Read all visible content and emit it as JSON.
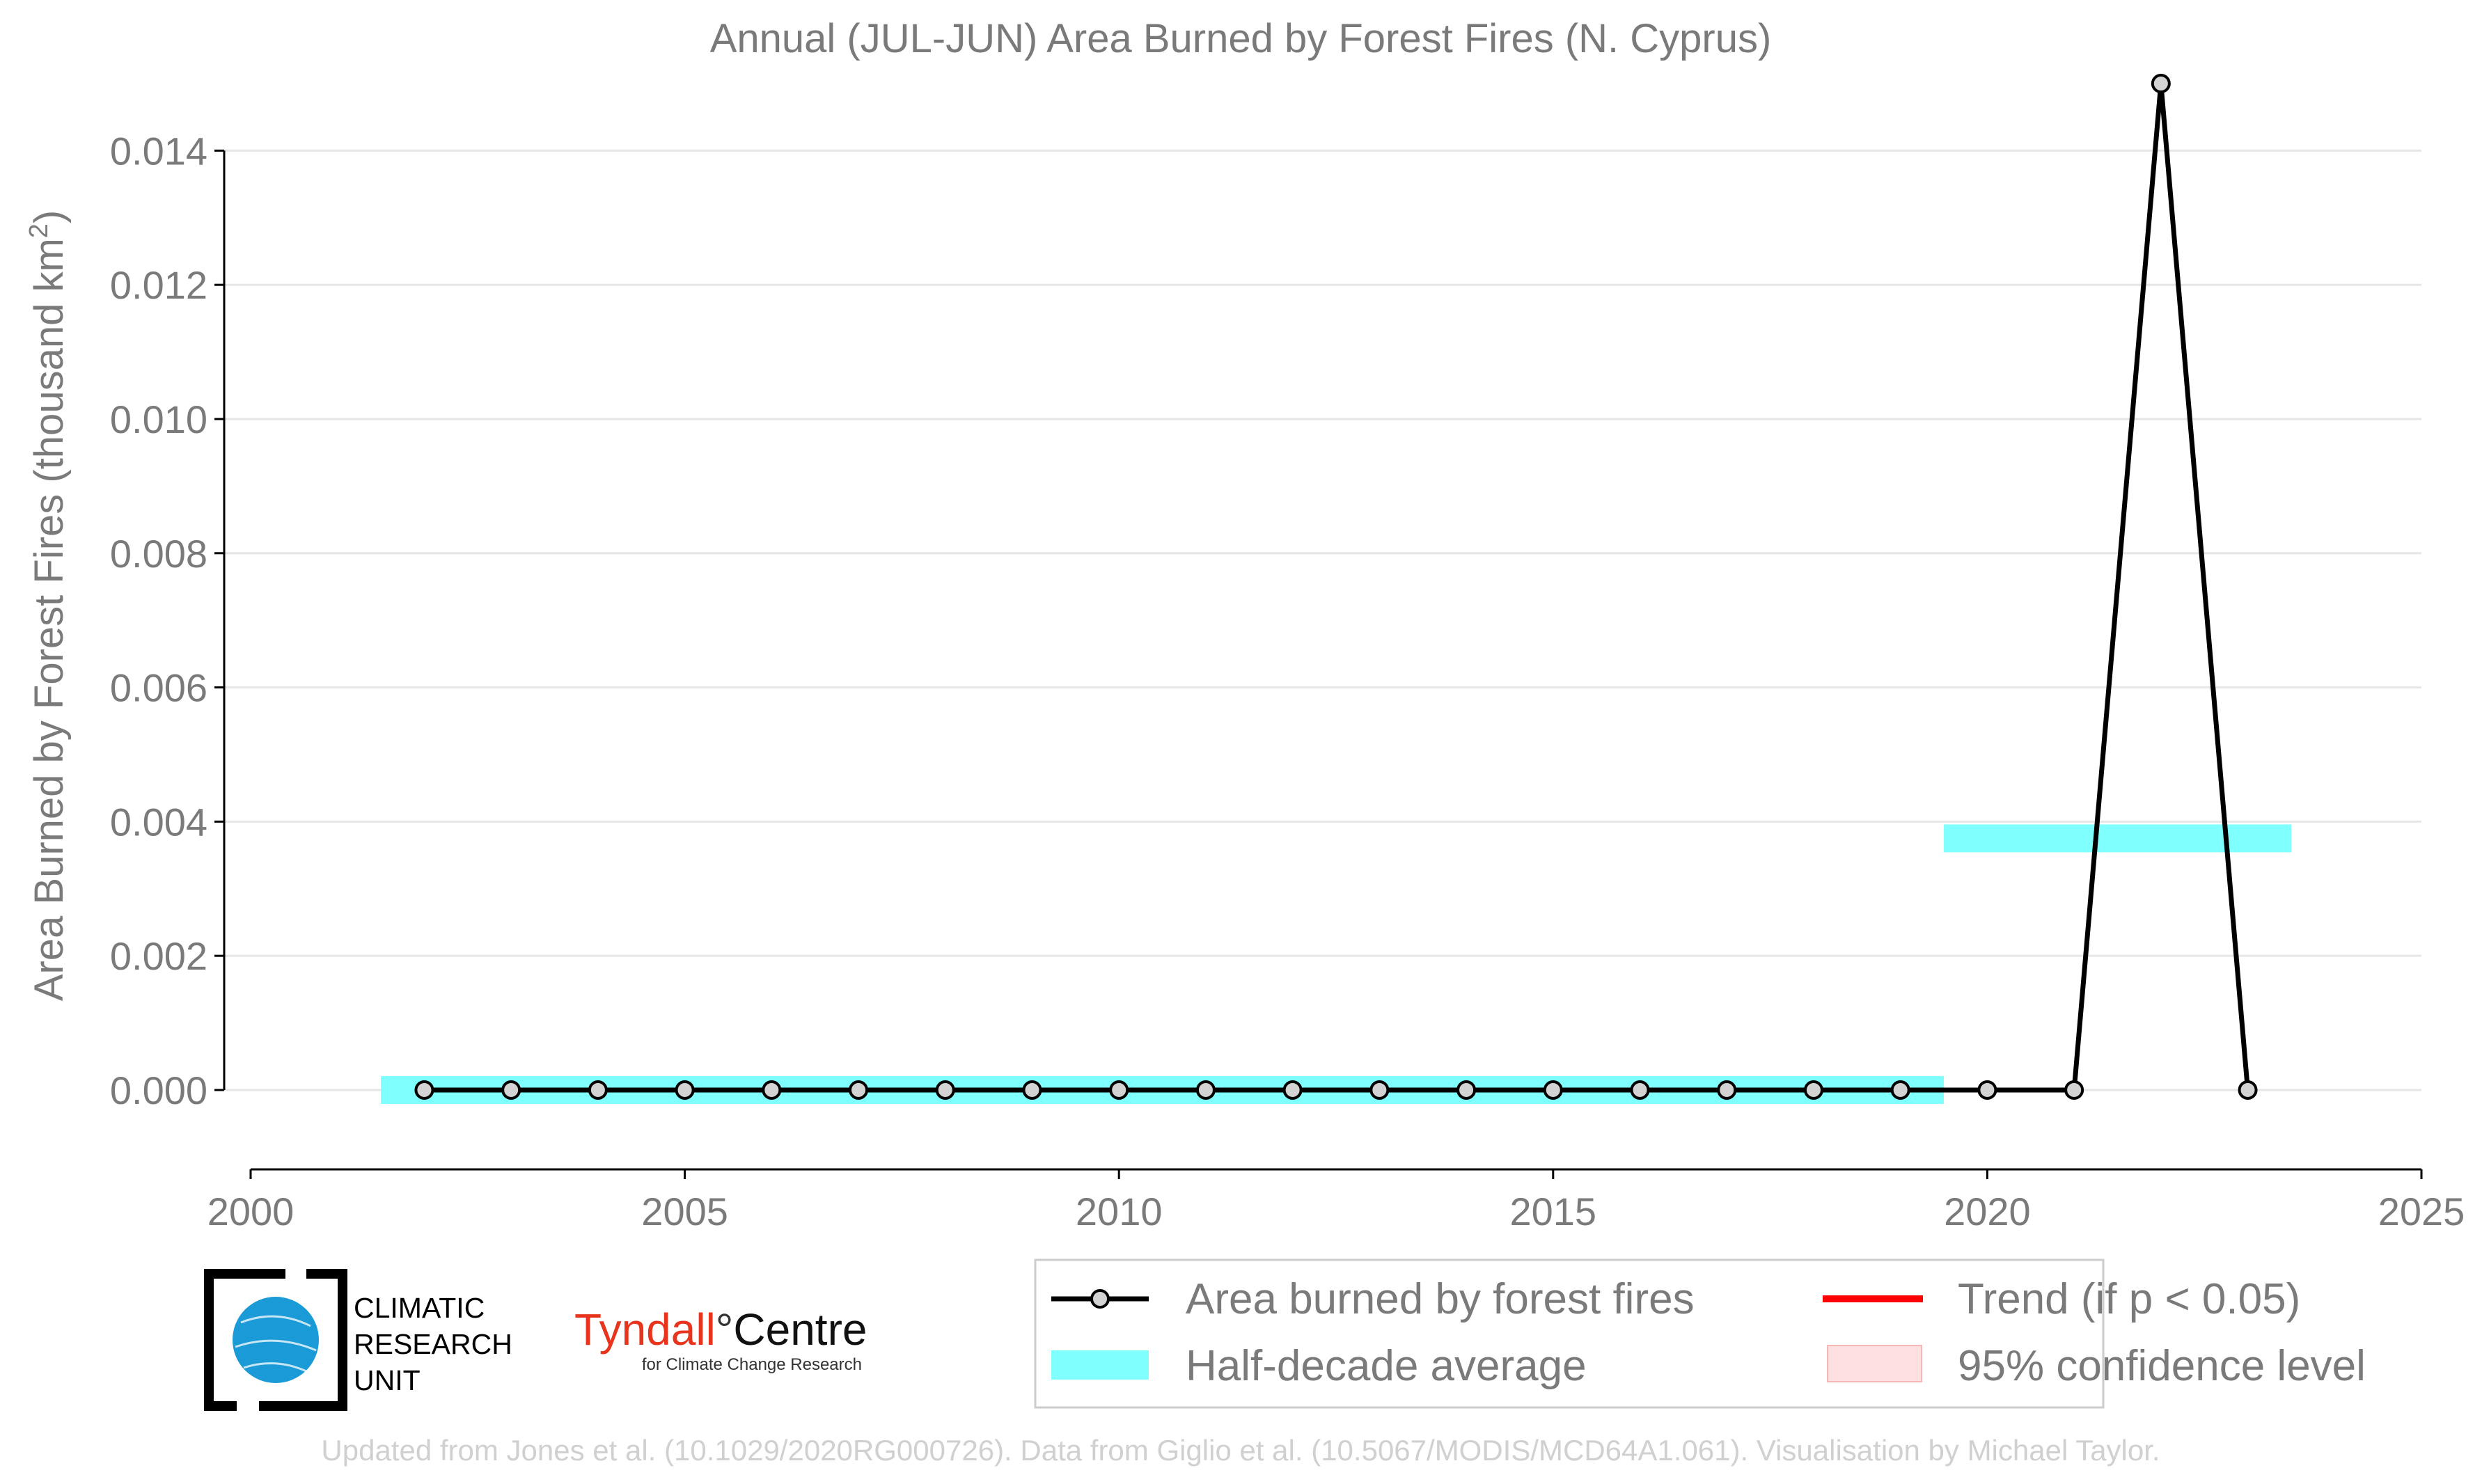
{
  "chart_data": {
    "type": "line",
    "title": "Annual (JUL-JUN) Area Burned by Forest Fires (N. Cyprus)",
    "ylabel": "Area Burned by Forest Fires (thousand km",
    "ylabel_sup": "2",
    "ylabel_close": ")",
    "xlabel": "",
    "xlim": [
      2000,
      2025
    ],
    "ylim": [
      -0.0011,
      0.015
    ],
    "grid": true,
    "x_ticks": [
      "2000",
      "2005",
      "2010",
      "2015",
      "2020",
      "2025"
    ],
    "y_ticks": [
      "0.000",
      "0.002",
      "0.004",
      "0.006",
      "0.008",
      "0.010",
      "0.012",
      "0.014"
    ],
    "series": [
      {
        "name": "Area burned by forest fires",
        "color": "#000000",
        "x": [
          2002,
          2003,
          2004,
          2005,
          2006,
          2007,
          2008,
          2009,
          2010,
          2011,
          2012,
          2013,
          2014,
          2015,
          2016,
          2017,
          2018,
          2019,
          2020,
          2021,
          2022,
          2023
        ],
        "y": [
          0,
          0,
          0,
          0,
          0,
          0,
          0,
          0,
          0,
          0,
          0,
          0,
          0,
          0,
          0,
          0,
          0,
          0,
          0,
          0,
          0.015,
          0
        ]
      }
    ],
    "half_decade_average": {
      "name": "Half-decade average",
      "color": "#80ffff",
      "segments": [
        {
          "x_start": 2001.5,
          "x_end": 2019.5,
          "y": 0.0
        },
        {
          "x_start": 2019.5,
          "x_end": 2023.5,
          "y": 0.00375
        }
      ]
    },
    "legend": {
      "placement": "bottom-right",
      "entries": [
        "Area burned by forest fires",
        "Trend (if p < 0.05)",
        "Half-decade average",
        "95% confidence level"
      ],
      "trend_color": "#ff0000",
      "confidence_color": "#ffe0e0"
    }
  },
  "logos": {
    "cru": {
      "line1": "CLIMATIC",
      "line2": "RESEARCH",
      "line3": "UNIT",
      "globe_color": "#1a9ad6"
    },
    "tyndall": {
      "part1": "Tyndall",
      "degree": "°",
      "part2": "Centre",
      "subtitle": "for Climate Change Research",
      "accent": "#e8341c"
    }
  },
  "footer": {
    "credit": "Updated from Jones et al. (10.1029/2020RG000726). Data from Giglio et al. (10.5067/MODIS/MCD64A1.061). Visualisation by Michael Taylor."
  }
}
